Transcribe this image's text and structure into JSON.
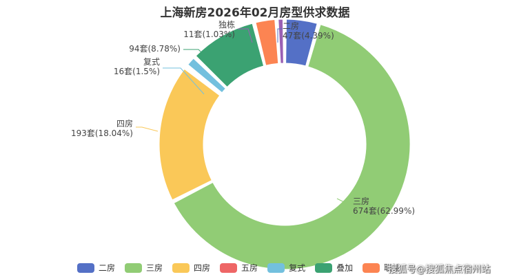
{
  "chart_data": {
    "type": "pie",
    "title": "上海新房2026年02月房型供求数据",
    "slices": [
      {
        "name": "二房",
        "value": 47,
        "percent": "4.39%",
        "color": "#5470c6",
        "label_count": "47套(4.39%)"
      },
      {
        "name": "三房",
        "value": 674,
        "percent": "62.99%",
        "color": "#91cc75",
        "label_count": "674套(62.99%)"
      },
      {
        "name": "四房",
        "value": 193,
        "percent": "18.04%",
        "color": "#fac858",
        "label_count": "193套(18.04%)"
      },
      {
        "name": "五房",
        "value": 3,
        "percent": "",
        "color": "#ee6666",
        "label_count": ""
      },
      {
        "name": "复式",
        "value": 16,
        "percent": "1.5%",
        "color": "#73c0de",
        "label_count": "16套(1.5%)"
      },
      {
        "name": "叠加",
        "value": 94,
        "percent": "8.78%",
        "color": "#3ba272",
        "label_count": "94套(8.78%)"
      },
      {
        "name": "联排",
        "value": 31,
        "percent": "",
        "color": "#fc8452",
        "label_count": ""
      },
      {
        "name": "独栋",
        "value": 11,
        "percent": "1.03%",
        "color": "#9a60b4",
        "label_count": "11套(1.03%)"
      }
    ],
    "legend": [
      "二房",
      "三房",
      "四房",
      "五房",
      "复式",
      "叠加",
      "联排"
    ],
    "legend_placement": "bottom"
  },
  "watermark": "搜狐号@搜狐焦点宿州站"
}
